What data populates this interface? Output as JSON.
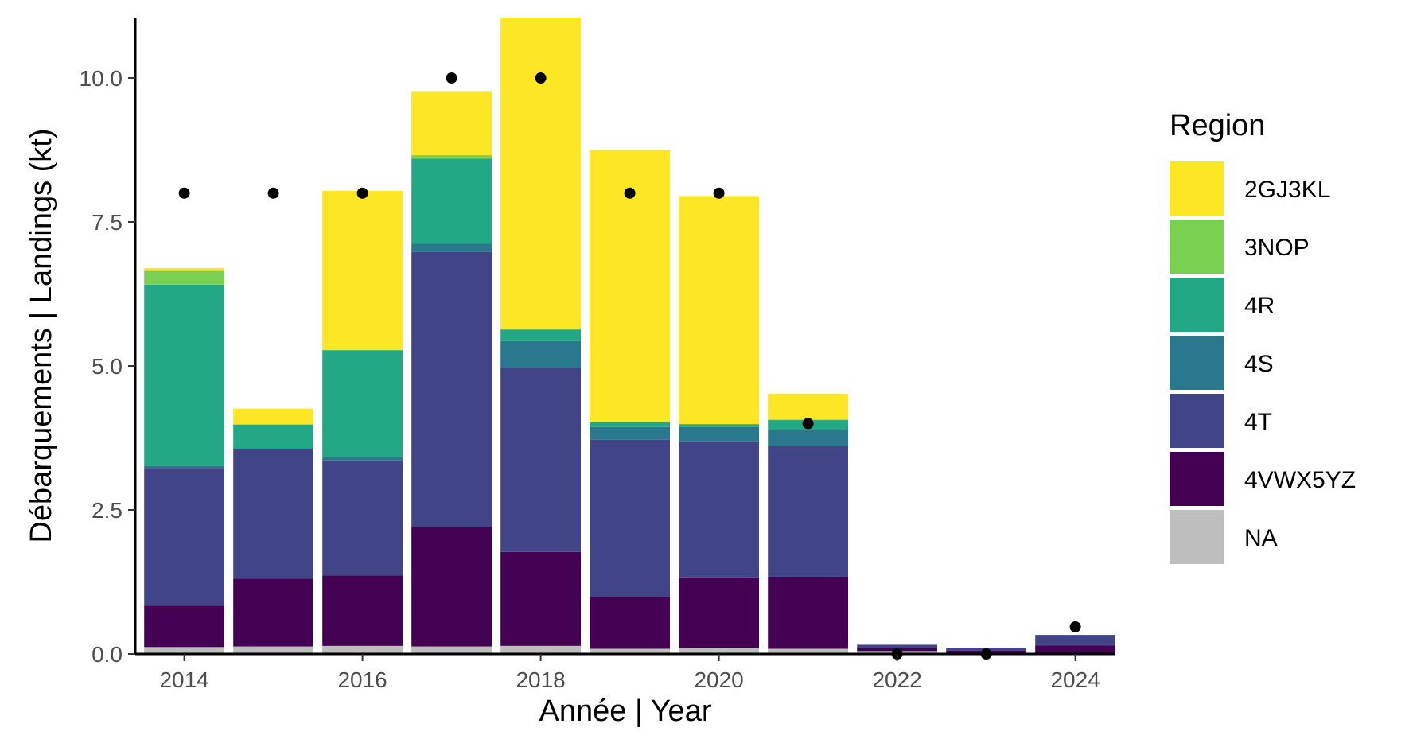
{
  "chart_data": {
    "type": "bar",
    "stacked": true,
    "xlabel": "Année | Year",
    "ylabel": "Débarquements | Landings (kt)",
    "ylim": [
      0,
      11.05
    ],
    "xlim": [
      2013.45,
      2024.45
    ],
    "x_ticks": [
      2014,
      2016,
      2018,
      2020,
      2022,
      2024
    ],
    "y_ticks": [
      0.0,
      2.5,
      5.0,
      7.5,
      10.0
    ],
    "y_tick_labels": [
      "0.0",
      "2.5",
      "5.0",
      "7.5",
      "10.0"
    ],
    "grid": false,
    "legend": {
      "title": "Region",
      "position": "right"
    },
    "categories": [
      2014,
      2015,
      2016,
      2017,
      2018,
      2019,
      2020,
      2021,
      2022,
      2023,
      2024
    ],
    "series": [
      {
        "name": "NA",
        "color": "#BEBEBE",
        "values": [
          0.12,
          0.13,
          0.14,
          0.13,
          0.14,
          0.09,
          0.11,
          0.09,
          0.05,
          0.02,
          0.0
        ]
      },
      {
        "name": "4VWX5YZ",
        "color": "#440154",
        "values": [
          0.72,
          1.18,
          1.22,
          2.07,
          1.63,
          0.9,
          1.22,
          1.25,
          0.05,
          0.04,
          0.15
        ]
      },
      {
        "name": "4T",
        "color": "#414487",
        "values": [
          2.39,
          2.24,
          2.0,
          4.78,
          3.2,
          2.73,
          2.36,
          2.27,
          0.06,
          0.05,
          0.18
        ]
      },
      {
        "name": "4S",
        "color": "#2A788E",
        "values": [
          0.03,
          0.02,
          0.06,
          0.14,
          0.46,
          0.22,
          0.25,
          0.28,
          0.0,
          0.0,
          0.0
        ]
      },
      {
        "name": "4R",
        "color": "#22A884",
        "values": [
          3.15,
          0.41,
          1.85,
          1.48,
          0.2,
          0.08,
          0.05,
          0.17,
          0.0,
          0.0,
          0.0
        ]
      },
      {
        "name": "3NOP",
        "color": "#7AD151",
        "values": [
          0.24,
          0.01,
          0.01,
          0.06,
          0.02,
          0.01,
          0.0,
          0.01,
          0.0,
          0.0,
          0.0
        ]
      },
      {
        "name": "2GJ3KL",
        "color": "#FDE725",
        "values": [
          0.05,
          0.27,
          2.76,
          1.1,
          5.4,
          4.72,
          3.96,
          0.45,
          0.0,
          0.0,
          0.0
        ]
      }
    ],
    "points": {
      "x": [
        2014,
        2015,
        2016,
        2017,
        2018,
        2019,
        2020,
        2021,
        2022,
        2023,
        2024
      ],
      "y": [
        8,
        8,
        8,
        10,
        10,
        8,
        8,
        4,
        0,
        0,
        0.47
      ],
      "color": "#000000"
    },
    "legend_order": [
      "2GJ3KL",
      "3NOP",
      "4R",
      "4S",
      "4T",
      "4VWX5YZ",
      "NA"
    ]
  }
}
